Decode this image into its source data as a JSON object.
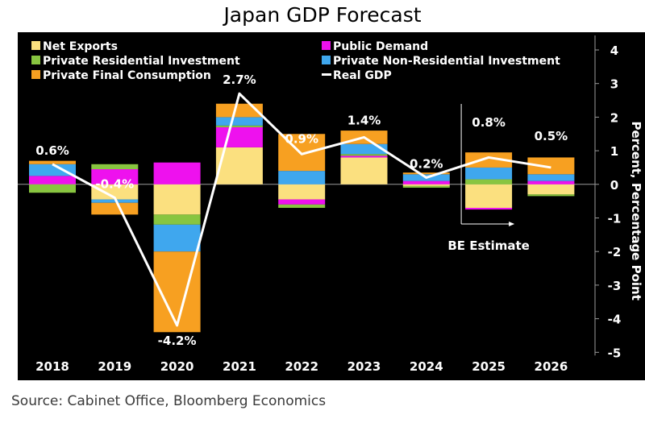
{
  "chart_data": {
    "type": "bar",
    "subtype": "stacked-bar-with-line",
    "title": "Japan GDP Forecast",
    "ylabel": "Percent, Percentage Point",
    "ylim": [
      -5,
      4
    ],
    "yticks": [
      "4",
      "3",
      "2",
      "1",
      "0",
      "-1",
      "-2",
      "-3",
      "-4",
      "-5"
    ],
    "categories": [
      "2018",
      "2019",
      "2020",
      "2021",
      "2022",
      "2023",
      "2024",
      "2025",
      "2026"
    ],
    "series": [
      {
        "name": "Net Exports",
        "color": "#fbe07f",
        "values": [
          0.0,
          -0.45,
          -0.9,
          1.1,
          -0.45,
          0.8,
          -0.05,
          -0.7,
          -0.3
        ]
      },
      {
        "name": "Public Demand",
        "color": "#ee11ee",
        "values": [
          0.25,
          0.45,
          0.65,
          0.6,
          -0.15,
          0.05,
          0.1,
          -0.05,
          0.1
        ]
      },
      {
        "name": "Private Residential Investment",
        "color": "#88c540",
        "values": [
          -0.25,
          0.15,
          -0.3,
          0.05,
          -0.1,
          0.05,
          -0.05,
          0.15,
          -0.05
        ]
      },
      {
        "name": "Private Non-Residential Investment",
        "color": "#3fa7ee",
        "values": [
          0.35,
          -0.1,
          -0.8,
          0.25,
          0.4,
          0.3,
          0.2,
          0.35,
          0.2
        ]
      },
      {
        "name": "Private Final Consumption",
        "color": "#f7a021",
        "values": [
          0.1,
          -0.35,
          -2.4,
          0.4,
          1.1,
          0.4,
          0.05,
          0.45,
          0.5
        ]
      }
    ],
    "line": {
      "name": "Real GDP",
      "color": "#ffffff",
      "values": [
        0.6,
        -0.4,
        -4.2,
        2.7,
        0.9,
        1.4,
        0.2,
        0.8,
        0.5
      ]
    },
    "data_labels": [
      "0.6%",
      "-0.4%",
      "-4.2%",
      "2.7%",
      "0.9%",
      "1.4%",
      "0.2%",
      "0.8%",
      "0.5%"
    ],
    "annotation": "BE Estimate",
    "legend_position": "top-left"
  },
  "source": "Source: Cabinet Office, Bloomberg Economics"
}
